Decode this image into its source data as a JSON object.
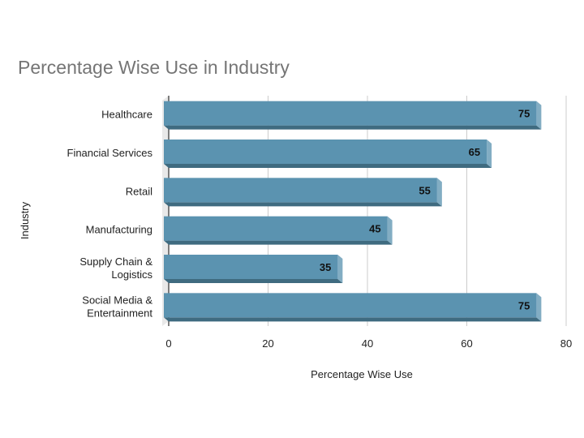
{
  "chart_data": {
    "type": "bar",
    "orientation": "horizontal",
    "title": "Percentage Wise Use in Industry",
    "xlabel": "Percentage Wise Use",
    "ylabel": "Industry",
    "categories": [
      [
        "Healthcare"
      ],
      [
        "Financial Services"
      ],
      [
        "Retail"
      ],
      [
        "Manufacturing"
      ],
      [
        "Supply Chain &",
        "Logistics"
      ],
      [
        "Social Media &",
        "Entertainment"
      ]
    ],
    "values": [
      75,
      65,
      55,
      45,
      35,
      75
    ],
    "xlim": [
      0,
      80
    ],
    "xticks": [
      0,
      20,
      40,
      60,
      80
    ],
    "grid": true,
    "bar_color": "#5b93b0",
    "bar_shade_color": "#3f6b80",
    "data_labels": true
  }
}
